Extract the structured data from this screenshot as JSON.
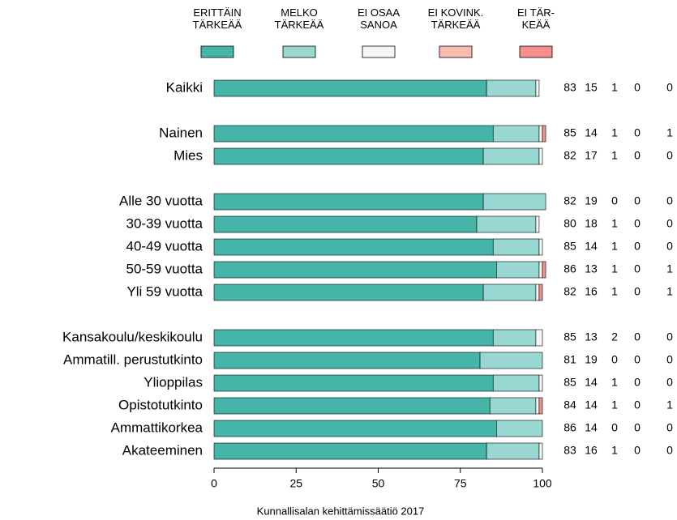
{
  "chart_data": {
    "type": "stacked-bar-horizontal",
    "categories": [
      "Kaikki",
      null,
      "Nainen",
      "Mies",
      null,
      "Alle 30 vuotta",
      "30-39 vuotta",
      "40-49 vuotta",
      "50-59 vuotta",
      "Yli 59 vuotta",
      null,
      "Kansakoulu/keskikoulu",
      "Ammatill. perustutkinto",
      "Ylioppilas",
      "Opistotutkinto",
      "Ammattikorkea",
      "Akateeminen"
    ],
    "series": [
      {
        "name": "ERITTÄIN\nTÄRKEÄÄ",
        "color": "#45b5aa",
        "values": [
          83,
          null,
          85,
          82,
          null,
          82,
          80,
          85,
          86,
          82,
          null,
          85,
          81,
          85,
          84,
          86,
          83
        ]
      },
      {
        "name": "MELKO\nTÄRKEÄÄ",
        "color": "#99d8d2",
        "values": [
          15,
          null,
          14,
          17,
          null,
          19,
          18,
          14,
          13,
          16,
          null,
          13,
          19,
          14,
          14,
          14,
          16
        ]
      },
      {
        "name": "EI OSAA\nSANOA",
        "color": "#f5f5f5",
        "values": [
          1,
          null,
          1,
          1,
          null,
          0,
          1,
          1,
          1,
          1,
          null,
          2,
          0,
          1,
          1,
          0,
          1
        ]
      },
      {
        "name": "EI KOVINK.\nTÄRKEÄÄ",
        "color": "#fbbcb0",
        "values": [
          0,
          null,
          0,
          0,
          null,
          0,
          0,
          0,
          0,
          0,
          null,
          0,
          0,
          0,
          0,
          0,
          0
        ]
      },
      {
        "name": "EI TÄR-\nKEÄÄ",
        "color": "#f4918a",
        "values": [
          0,
          null,
          1,
          0,
          null,
          0,
          0,
          0,
          1,
          1,
          null,
          0,
          0,
          0,
          1,
          0,
          0
        ]
      }
    ],
    "xlim": [
      0,
      100
    ],
    "xticks": [
      0,
      25,
      50,
      75,
      100
    ],
    "caption": "Kunnallisalan kehittämissäätiö 2017"
  }
}
